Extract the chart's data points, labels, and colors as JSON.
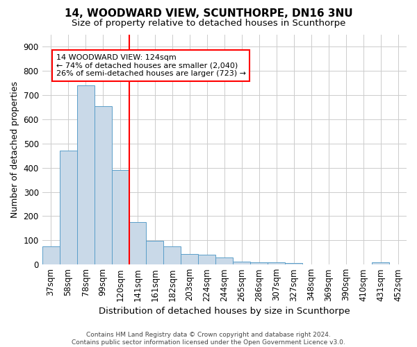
{
  "title": "14, WOODWARD VIEW, SCUNTHORPE, DN16 3NU",
  "subtitle": "Size of property relative to detached houses in Scunthorpe",
  "xlabel": "Distribution of detached houses by size in Scunthorpe",
  "ylabel": "Number of detached properties",
  "footer_line1": "Contains HM Land Registry data © Crown copyright and database right 2024.",
  "footer_line2": "Contains public sector information licensed under the Open Government Licence v3.0.",
  "categories": [
    "37sqm",
    "58sqm",
    "78sqm",
    "99sqm",
    "120sqm",
    "141sqm",
    "161sqm",
    "182sqm",
    "203sqm",
    "224sqm",
    "244sqm",
    "265sqm",
    "286sqm",
    "307sqm",
    "327sqm",
    "348sqm",
    "369sqm",
    "390sqm",
    "410sqm",
    "431sqm",
    "452sqm"
  ],
  "values": [
    75,
    470,
    740,
    655,
    390,
    175,
    98,
    75,
    43,
    40,
    30,
    13,
    10,
    10,
    6,
    0,
    0,
    0,
    0,
    8,
    0
  ],
  "bar_color": "#c9d9e8",
  "bar_edge_color": "#5a9ec9",
  "red_line_x": 4.5,
  "annotation_text_line1": "14 WOODWARD VIEW: 124sqm",
  "annotation_text_line2": "← 74% of detached houses are smaller (2,040)",
  "annotation_text_line3": "26% of semi-detached houses are larger (723) →",
  "ylim": [
    0,
    950
  ],
  "yticks": [
    0,
    100,
    200,
    300,
    400,
    500,
    600,
    700,
    800,
    900
  ],
  "background_color": "#ffffff",
  "grid_color": "#cccccc",
  "title_fontsize": 11,
  "subtitle_fontsize": 9.5,
  "axis_label_fontsize": 9,
  "tick_fontsize": 8.5,
  "annotation_fontsize": 8,
  "footer_fontsize": 6.5
}
